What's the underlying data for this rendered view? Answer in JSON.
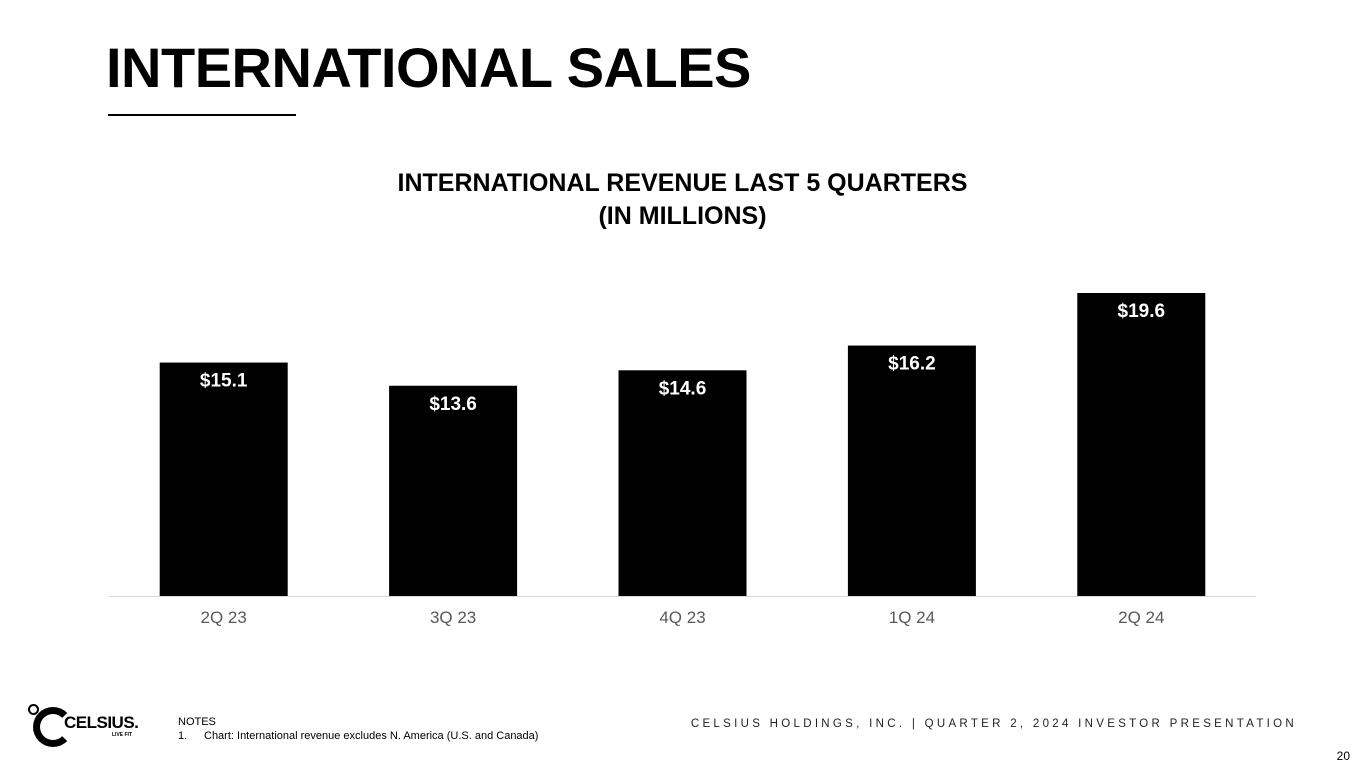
{
  "slide": {
    "title": "INTERNATIONAL SALES",
    "footer": "CELSIUS HOLDINGS, INC. | QUARTER 2, 2024 INVESTOR PRESENTATION",
    "page_number": "20"
  },
  "logo": {
    "wordmark": "CELSIUS.",
    "tagline": "LIVE FIT"
  },
  "notes": {
    "heading": "NOTES",
    "items": [
      {
        "number": "1.",
        "text": "Chart: International revenue excludes N. America (U.S. and Canada)"
      }
    ]
  },
  "colors": {
    "bar": "#000000",
    "bar_label": "#ffffff",
    "axis_line": "#d9d9d9",
    "tick_label": "#595959"
  },
  "chart_data": {
    "type": "bar",
    "title": "INTERNATIONAL REVENUE LAST 5 QUARTERS",
    "subtitle": "(IN MILLIONS)",
    "categories": [
      "2Q 23",
      "3Q 23",
      "4Q 23",
      "1Q 24",
      "2Q 24"
    ],
    "values": [
      15.1,
      13.6,
      14.6,
      16.2,
      19.6
    ],
    "data_labels": [
      "$15.1",
      "$13.6",
      "$14.6",
      "$16.2",
      "$19.6"
    ],
    "xlabel": "",
    "ylabel": "",
    "ylim": [
      0,
      19.6
    ],
    "grid": false,
    "legend": "none"
  }
}
